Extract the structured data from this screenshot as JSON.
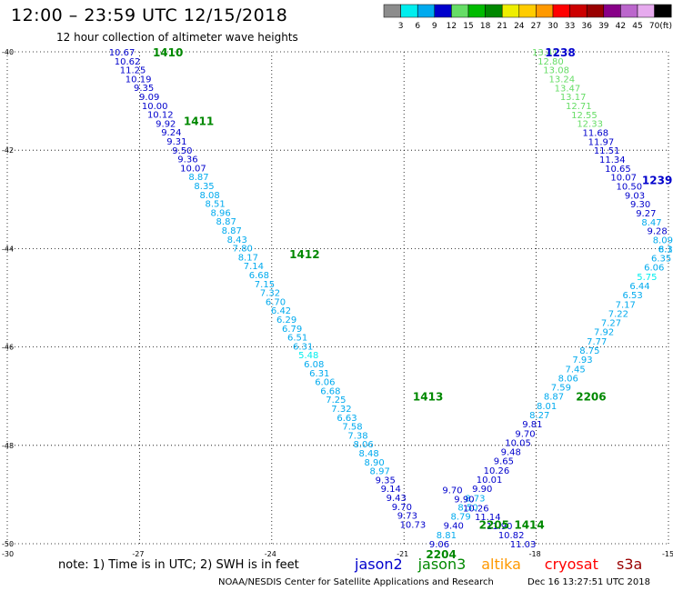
{
  "title": "12:00 – 23:59 UTC 12/15/2018",
  "subtitle": "12 hour collection of altimeter wave heights",
  "colorbar": {
    "labels": [
      "3",
      "6",
      "9",
      "12",
      "15",
      "18",
      "21",
      "24",
      "27",
      "30",
      "33",
      "36",
      "39",
      "42",
      "45",
      "70"
    ],
    "unit": "(ft)",
    "colors": [
      "#8c8c8c",
      "#00eeee",
      "#00aaee",
      "#0000cc",
      "#66dd66",
      "#00bb00",
      "#008800",
      "#eeee00",
      "#ffcc00",
      "#ff9900",
      "#ff0000",
      "#cc0000",
      "#990000",
      "#880088",
      "#bb66cc",
      "#e6aaee",
      "#000000"
    ]
  },
  "axes": {
    "ytick_labels": [
      "-40",
      "-42",
      "-44",
      "-46",
      "-48",
      "-50"
    ],
    "xtick_labels": [
      "-30",
      "-27",
      "-24",
      "-21",
      "-18",
      "-15"
    ]
  },
  "note": "note: 1) Time is in UTC; 2) SWH is in feet",
  "legend": [
    {
      "name": "jason2",
      "color": "#0000cc"
    },
    {
      "name": "jason3",
      "color": "#008800"
    },
    {
      "name": "altika",
      "color": "#ff9900"
    },
    {
      "name": "cryosat",
      "color": "#ff0000"
    },
    {
      "name": "s3a",
      "color": "#990000"
    }
  ],
  "credit": "NOAA/NESDIS Center for Satellite Applications and Research",
  "generated": "Dec 16 13:27:51 UTC 2018",
  "chart_data": {
    "type": "scatter",
    "xlim": [
      -30,
      -15
    ],
    "ylim": [
      -50,
      -40
    ],
    "grid": true,
    "description_of_x": "longitude",
    "description_of_y": "latitude",
    "time_labels": [
      {
        "text": "1410",
        "x": -26.7,
        "y": -40.0,
        "color": "#008800"
      },
      {
        "text": "1411",
        "x": -26.0,
        "y": -41.4,
        "color": "#008800"
      },
      {
        "text": "1412",
        "x": -23.6,
        "y": -44.1,
        "color": "#008800"
      },
      {
        "text": "1413",
        "x": -20.8,
        "y": -47.0,
        "color": "#008800"
      },
      {
        "text": "1414",
        "x": -18.5,
        "y": -49.6,
        "color": "#008800"
      },
      {
        "text": "2204",
        "x": -20.5,
        "y": -50.2,
        "color": "#008800"
      },
      {
        "text": "2205",
        "x": -19.3,
        "y": -49.6,
        "color": "#008800"
      },
      {
        "text": "2206",
        "x": -17.1,
        "y": -47.0,
        "color": "#008800"
      },
      {
        "text": "1238",
        "x": -17.8,
        "y": -40.0,
        "color": "#0000cc"
      },
      {
        "text": "1239",
        "x": -15.6,
        "y": -42.6,
        "color": "#0000cc"
      }
    ],
    "series": [
      {
        "name": "jason3",
        "x0": -27.4,
        "y0": -40.0,
        "x1": -20.8,
        "y1": -49.6,
        "values": [
          10.67,
          10.62,
          11.25,
          10.19,
          9.35,
          9.09,
          10.0,
          10.12,
          9.92,
          9.24,
          9.31,
          9.5,
          9.36,
          10.07,
          8.87,
          8.35,
          8.08,
          8.51,
          8.96,
          8.87,
          8.87,
          8.43,
          7.8,
          8.17,
          7.14,
          6.68,
          7.15,
          7.32,
          6.7,
          6.42,
          6.29,
          6.79,
          6.51,
          6.31,
          5.48,
          6.08,
          6.31,
          6.06,
          6.68,
          7.25,
          7.32,
          6.63,
          7.58,
          7.38,
          8.06,
          8.48,
          8.9,
          8.97,
          9.35,
          9.14,
          9.43,
          9.7,
          9.73,
          10.73
        ]
      },
      {
        "name": "jason3",
        "x0": -20.2,
        "y0": -50.0,
        "x1": -15.0,
        "y1": -44.0,
        "values": [
          9.06,
          8.81,
          9.4,
          8.79,
          8.5,
          8.73,
          9.9,
          10.01,
          10.26,
          9.65,
          9.48,
          10.05,
          9.7,
          9.81,
          8.27,
          8.01,
          8.87,
          7.59,
          8.06,
          7.45,
          7.93,
          8.75,
          7.77,
          7.92,
          7.27,
          7.22,
          7.17,
          6.53,
          6.44,
          5.75,
          6.06,
          6.35,
          6.16
        ]
      },
      {
        "name": "jason2",
        "x0": -17.8,
        "y0": -40.0,
        "x1": -15.0,
        "y1": -44.0,
        "values": [
          13.41,
          12.8,
          13.08,
          13.24,
          13.47,
          13.17,
          12.71,
          12.55,
          12.33,
          11.68,
          11.97,
          11.51,
          11.34,
          10.65,
          10.07,
          10.5,
          9.03,
          9.3,
          9.27,
          8.47,
          9.28,
          8.09,
          8.31
        ]
      },
      {
        "name": "jason2",
        "x0": -19.9,
        "y0": -48.9,
        "x1": -18.3,
        "y1": -50.0,
        "values": [
          9.7,
          9.9,
          10.26,
          11.14,
          11.9,
          10.82,
          11.03
        ]
      }
    ]
  }
}
